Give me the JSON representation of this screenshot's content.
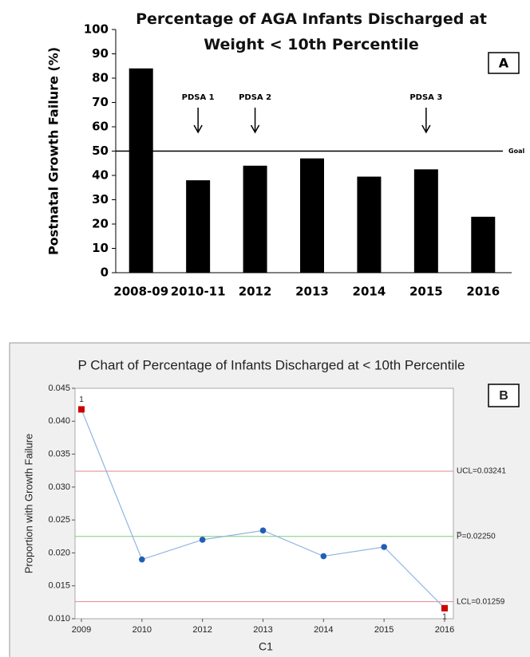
{
  "chart_data": [
    {
      "type": "bar",
      "title": "Percentage of AGA Infants Discharged at Weight < 10th Percentile",
      "panel_label": "A",
      "y_label": "Postnatal Growth Failure (%)",
      "categories": [
        "2008-09",
        "2010-11",
        "2012",
        "2013",
        "2014",
        "2015",
        "2016"
      ],
      "values": [
        84,
        38,
        44,
        47,
        39.5,
        42.5,
        23
      ],
      "color": "#000000",
      "ylim": [
        0,
        100
      ],
      "yticks": [
        0,
        10,
        20,
        30,
        40,
        50,
        60,
        70,
        80,
        90,
        100
      ],
      "reference_lines": [
        {
          "value": 50,
          "label": "Goal",
          "color": "#000000"
        }
      ],
      "annotations": [
        {
          "text": "PDSA 1",
          "category": "2010-11"
        },
        {
          "text": "PDSA 2",
          "category": "2012"
        },
        {
          "text": "PDSA 3",
          "category": "2015"
        }
      ]
    },
    {
      "type": "line",
      "title": "P Chart of Percentage of Infants Discharged at < 10th Percentile",
      "panel_label": "B",
      "x_label": "C1",
      "y_label": "Proportion with Growth Failure",
      "categories": [
        "2009",
        "2010",
        "2012",
        "2013",
        "2014",
        "2015",
        "2016"
      ],
      "values": [
        0.0418,
        0.019,
        0.022,
        0.0234,
        0.0195,
        0.0209,
        0.0116
      ],
      "point_labels": [
        "1",
        null,
        null,
        null,
        null,
        null,
        "1"
      ],
      "color": "#1f5fb5",
      "line_color": "#8fb4e0",
      "highlight_color": "#cc0000",
      "ylim": [
        0.01,
        0.045
      ],
      "yticks": [
        {
          "value": 0.01,
          "label": "0.010"
        },
        {
          "value": 0.015,
          "label": "0.015"
        },
        {
          "value": 0.02,
          "label": "0.020"
        },
        {
          "value": 0.025,
          "label": "0.025"
        },
        {
          "value": 0.03,
          "label": "0.030"
        },
        {
          "value": 0.035,
          "label": "0.035"
        },
        {
          "value": 0.04,
          "label": "0.040"
        },
        {
          "value": 0.045,
          "label": "0.045"
        }
      ],
      "reference_lines": [
        {
          "value": 0.03241,
          "label": "UCL=0.03241",
          "color": "#e08a8a"
        },
        {
          "value": 0.0225,
          "label": "P̅=0.02250",
          "color": "#7fcc7f"
        },
        {
          "value": 0.01259,
          "label": "LCL=0.01259",
          "color": "#e08a8a"
        }
      ]
    }
  ]
}
